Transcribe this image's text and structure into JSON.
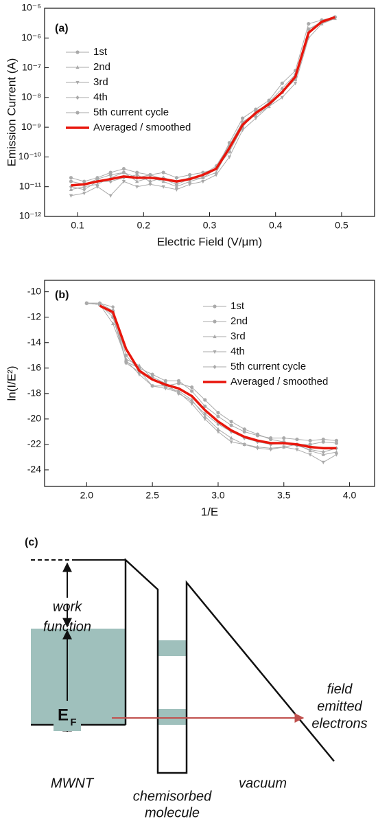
{
  "chart_data": [
    {
      "type": "line",
      "panel_label": "(a)",
      "xlabel": "Electric Field (V/μm)",
      "ylabel": "Emission Current (A)",
      "yscale": "log",
      "legend": "upper left",
      "xlim": [
        0.05,
        0.55
      ],
      "xticks": [
        0.1,
        0.2,
        0.3,
        0.4,
        0.5
      ],
      "ylim": [
        1e-12,
        1e-05
      ],
      "yticks": [
        {
          "value": 1e-12,
          "label": "10⁻¹²"
        },
        {
          "value": 1e-11,
          "label": "10⁻¹¹"
        },
        {
          "value": 1e-10,
          "label": "10⁻¹⁰"
        },
        {
          "value": 1e-09,
          "label": "10⁻⁹"
        },
        {
          "value": 1e-08,
          "label": "10⁻⁸"
        },
        {
          "value": 1e-07,
          "label": "10⁻⁷"
        },
        {
          "value": 1e-06,
          "label": "10⁻⁶"
        },
        {
          "value": 1e-05,
          "label": "10⁻⁵"
        }
      ],
      "x": [
        0.09,
        0.11,
        0.13,
        0.15,
        0.17,
        0.19,
        0.21,
        0.23,
        0.25,
        0.27,
        0.29,
        0.31,
        0.33,
        0.35,
        0.37,
        0.39,
        0.41,
        0.43,
        0.45,
        0.47,
        0.49
      ],
      "series": [
        {
          "name": "1st",
          "color": "#aaaaaa",
          "marker": "circle",
          "values": [
            2e-11,
            1.5e-11,
            2e-11,
            3e-11,
            4e-11,
            3e-11,
            2.5e-11,
            3e-11,
            2e-11,
            2.5e-11,
            3e-11,
            4e-11,
            3e-10,
            2e-09,
            4e-09,
            8e-09,
            3e-08,
            8e-08,
            3e-06,
            4e-06,
            5e-06
          ]
        },
        {
          "name": "2nd",
          "color": "#aaaaaa",
          "marker": "triangle-up",
          "values": [
            8e-12,
            1e-11,
            1.2e-11,
            2e-11,
            3e-11,
            1.5e-11,
            2e-11,
            1.5e-11,
            1e-11,
            1.5e-11,
            2e-11,
            3e-11,
            2e-10,
            1.5e-09,
            2.5e-09,
            5e-09,
            1.5e-08,
            4e-08,
            2e-06,
            3e-06,
            4.5e-06
          ]
        },
        {
          "name": "3rd",
          "color": "#aaaaaa",
          "marker": "triangle-down",
          "values": [
            5e-12,
            6e-12,
            1e-11,
            5e-12,
            1.5e-11,
            1e-11,
            1.2e-11,
            1e-11,
            8e-12,
            1.2e-11,
            1.5e-11,
            2.5e-11,
            1e-10,
            8e-10,
            2e-09,
            5e-09,
            1e-08,
            3e-08,
            1e-06,
            3e-06,
            5e-06
          ]
        },
        {
          "name": "4th",
          "color": "#aaaaaa",
          "marker": "diamond",
          "values": [
            1e-11,
            8e-12,
            1.5e-11,
            1.5e-11,
            2e-11,
            2.5e-11,
            1.5e-11,
            2e-11,
            1.5e-11,
            2e-11,
            2.5e-11,
            5e-11,
            2.5e-10,
            1.5e-09,
            3e-09,
            7e-09,
            2e-08,
            6e-08,
            1.5e-06,
            4e-06,
            5e-06
          ]
        },
        {
          "name": "5th current cycle",
          "color": "#aaaaaa",
          "marker": "circle",
          "values": [
            1.5e-11,
            1.2e-11,
            1.8e-11,
            2.5e-11,
            3e-11,
            2e-11,
            2.5e-11,
            1.8e-11,
            1.2e-11,
            1.8e-11,
            2e-11,
            4e-11,
            1.5e-10,
            1e-09,
            3.5e-09,
            6e-09,
            1.5e-08,
            5e-08,
            2e-06,
            3.5e-06,
            5e-06
          ]
        },
        {
          "name": "Averaged / smoothed",
          "color": "#e8160c",
          "values": [
            1.1e-11,
            1.2e-11,
            1.5e-11,
            1.8e-11,
            2.2e-11,
            2e-11,
            2e-11,
            1.8e-11,
            1.5e-11,
            1.8e-11,
            2.5e-11,
            4e-11,
            2e-10,
            1.2e-09,
            3e-09,
            6e-09,
            1.5e-08,
            5e-08,
            1.5e-06,
            3.5e-06,
            5e-06
          ]
        }
      ]
    },
    {
      "type": "line",
      "panel_label": "(b)",
      "xlabel": "1/E",
      "ylabel": "ln(I/E²)",
      "legend": "upper right",
      "xlim": [
        1.68,
        4.19
      ],
      "xticks": [
        {
          "value": 2,
          "label": "2.0"
        },
        {
          "value": 2.5,
          "label": "2.5"
        },
        {
          "value": 3,
          "label": "3.0"
        },
        {
          "value": 3.5,
          "label": "3.5"
        },
        {
          "value": 4,
          "label": "4.0"
        }
      ],
      "ylim": [
        -25.3,
        -9.1
      ],
      "yticks": [
        -24,
        -22,
        -20,
        -18,
        -16,
        -14,
        -12,
        -10
      ],
      "x": [
        2.0,
        2.1,
        2.2,
        2.3,
        2.4,
        2.5,
        2.6,
        2.7,
        2.8,
        2.9,
        3.0,
        3.1,
        3.2,
        3.3,
        3.4,
        3.5,
        3.6,
        3.7,
        3.8,
        3.9
      ],
      "series": [
        {
          "name": "1st",
          "color": "#aaaaaa",
          "marker": "circle",
          "values": [
            -10.9,
            -11.0,
            -12.0,
            -15.5,
            -16.0,
            -16.5,
            -17.0,
            -17.0,
            -17.8,
            -19.0,
            -19.8,
            -20.5,
            -21.0,
            -21.3,
            -21.5,
            -21.5,
            -21.6,
            -21.7,
            -21.6,
            -21.7
          ]
        },
        {
          "name": "2nd",
          "color": "#aaaaaa",
          "marker": "circle",
          "values": [
            -10.9,
            -10.9,
            -11.5,
            -15.0,
            -16.2,
            -17.4,
            -17.4,
            -17.2,
            -17.5,
            -18.5,
            -19.5,
            -20.2,
            -20.8,
            -21.2,
            -21.6,
            -21.8,
            -22.0,
            -22.0,
            -21.8,
            -21.9
          ]
        },
        {
          "name": "3rd",
          "color": "#aaaaaa",
          "marker": "triangle-up",
          "values": [
            -10.9,
            -11.0,
            -12.5,
            -15.3,
            -15.8,
            -16.8,
            -17.5,
            -17.8,
            -18.5,
            -19.8,
            -20.8,
            -21.5,
            -22.0,
            -22.2,
            -22.3,
            -22.2,
            -22.0,
            -22.5,
            -22.8,
            -22.6
          ]
        },
        {
          "name": "4th",
          "color": "#aaaaaa",
          "marker": "triangle-down",
          "values": [
            -10.9,
            -11.0,
            -11.8,
            -15.4,
            -16.5,
            -17.4,
            -17.6,
            -17.9,
            -18.8,
            -20.0,
            -21.0,
            -21.8,
            -22.0,
            -22.3,
            -22.4,
            -22.2,
            -22.4,
            -22.8,
            -23.4,
            -22.8
          ]
        },
        {
          "name": "5th current cycle",
          "color": "#aaaaaa",
          "marker": "diamond",
          "values": [
            -10.9,
            -10.9,
            -11.2,
            -15.6,
            -16.3,
            -16.7,
            -17.2,
            -18.0,
            -18.6,
            -19.6,
            -20.4,
            -21.0,
            -21.5,
            -21.8,
            -22.0,
            -21.9,
            -22.1,
            -22.4,
            -22.6,
            -22.3
          ]
        },
        {
          "name": "Averaged / smoothed",
          "color": "#e8160c",
          "values": [
            null,
            -11.1,
            -11.6,
            -14.5,
            -16.2,
            -16.9,
            -17.3,
            -17.6,
            -18.2,
            -19.3,
            -20.2,
            -20.9,
            -21.4,
            -21.7,
            -21.9,
            -21.9,
            -22.0,
            -22.2,
            -22.3,
            -22.3
          ]
        }
      ]
    }
  ],
  "diagram": {
    "panel_label": "(c)",
    "work_function": [
      "work",
      "function"
    ],
    "fermi_symbol": "E",
    "fermi_subscript": "F",
    "emitted": [
      "field",
      "emitted",
      "electrons"
    ],
    "mwnt": "MWNT",
    "molecule": [
      "chemisorbed",
      "molecule"
    ],
    "vacuum": "vacuum"
  }
}
